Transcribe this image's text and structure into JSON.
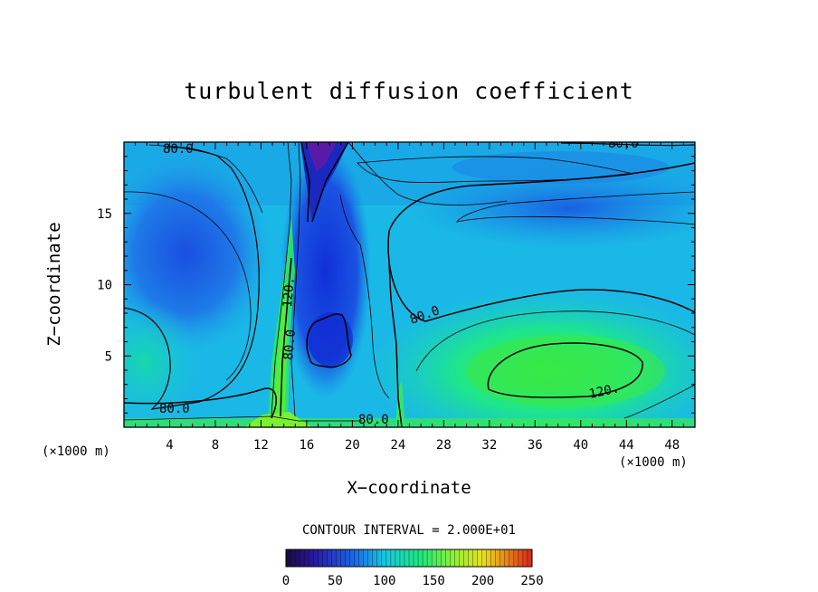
{
  "chart_data": {
    "type": "heatmap",
    "title": "turbulent diffusion coefficient",
    "xlabel": "X−coordinate",
    "ylabel": "Z−coordinate",
    "x_unit": "(×1000 m)",
    "x_ticks": [
      4,
      8,
      12,
      16,
      20,
      24,
      28,
      32,
      36,
      40,
      44,
      48
    ],
    "y_ticks": [
      5,
      10,
      15
    ],
    "xlim": [
      0,
      50
    ],
    "ylim": [
      0,
      20
    ],
    "contour_interval_text": "CONTOUR INTERVAL = 2.000E+01",
    "contour_labels": [
      "80.0",
      "80.0",
      "80.0",
      "120.",
      "80.0",
      "120.",
      "80.0",
      "80.0"
    ],
    "colorbar": {
      "range": [
        0,
        250
      ],
      "ticks": [
        "0",
        "50",
        "100",
        "150",
        "200",
        "250"
      ],
      "colormap": "rainbow (purple-blue-cyan-green-yellow-red)"
    }
  }
}
